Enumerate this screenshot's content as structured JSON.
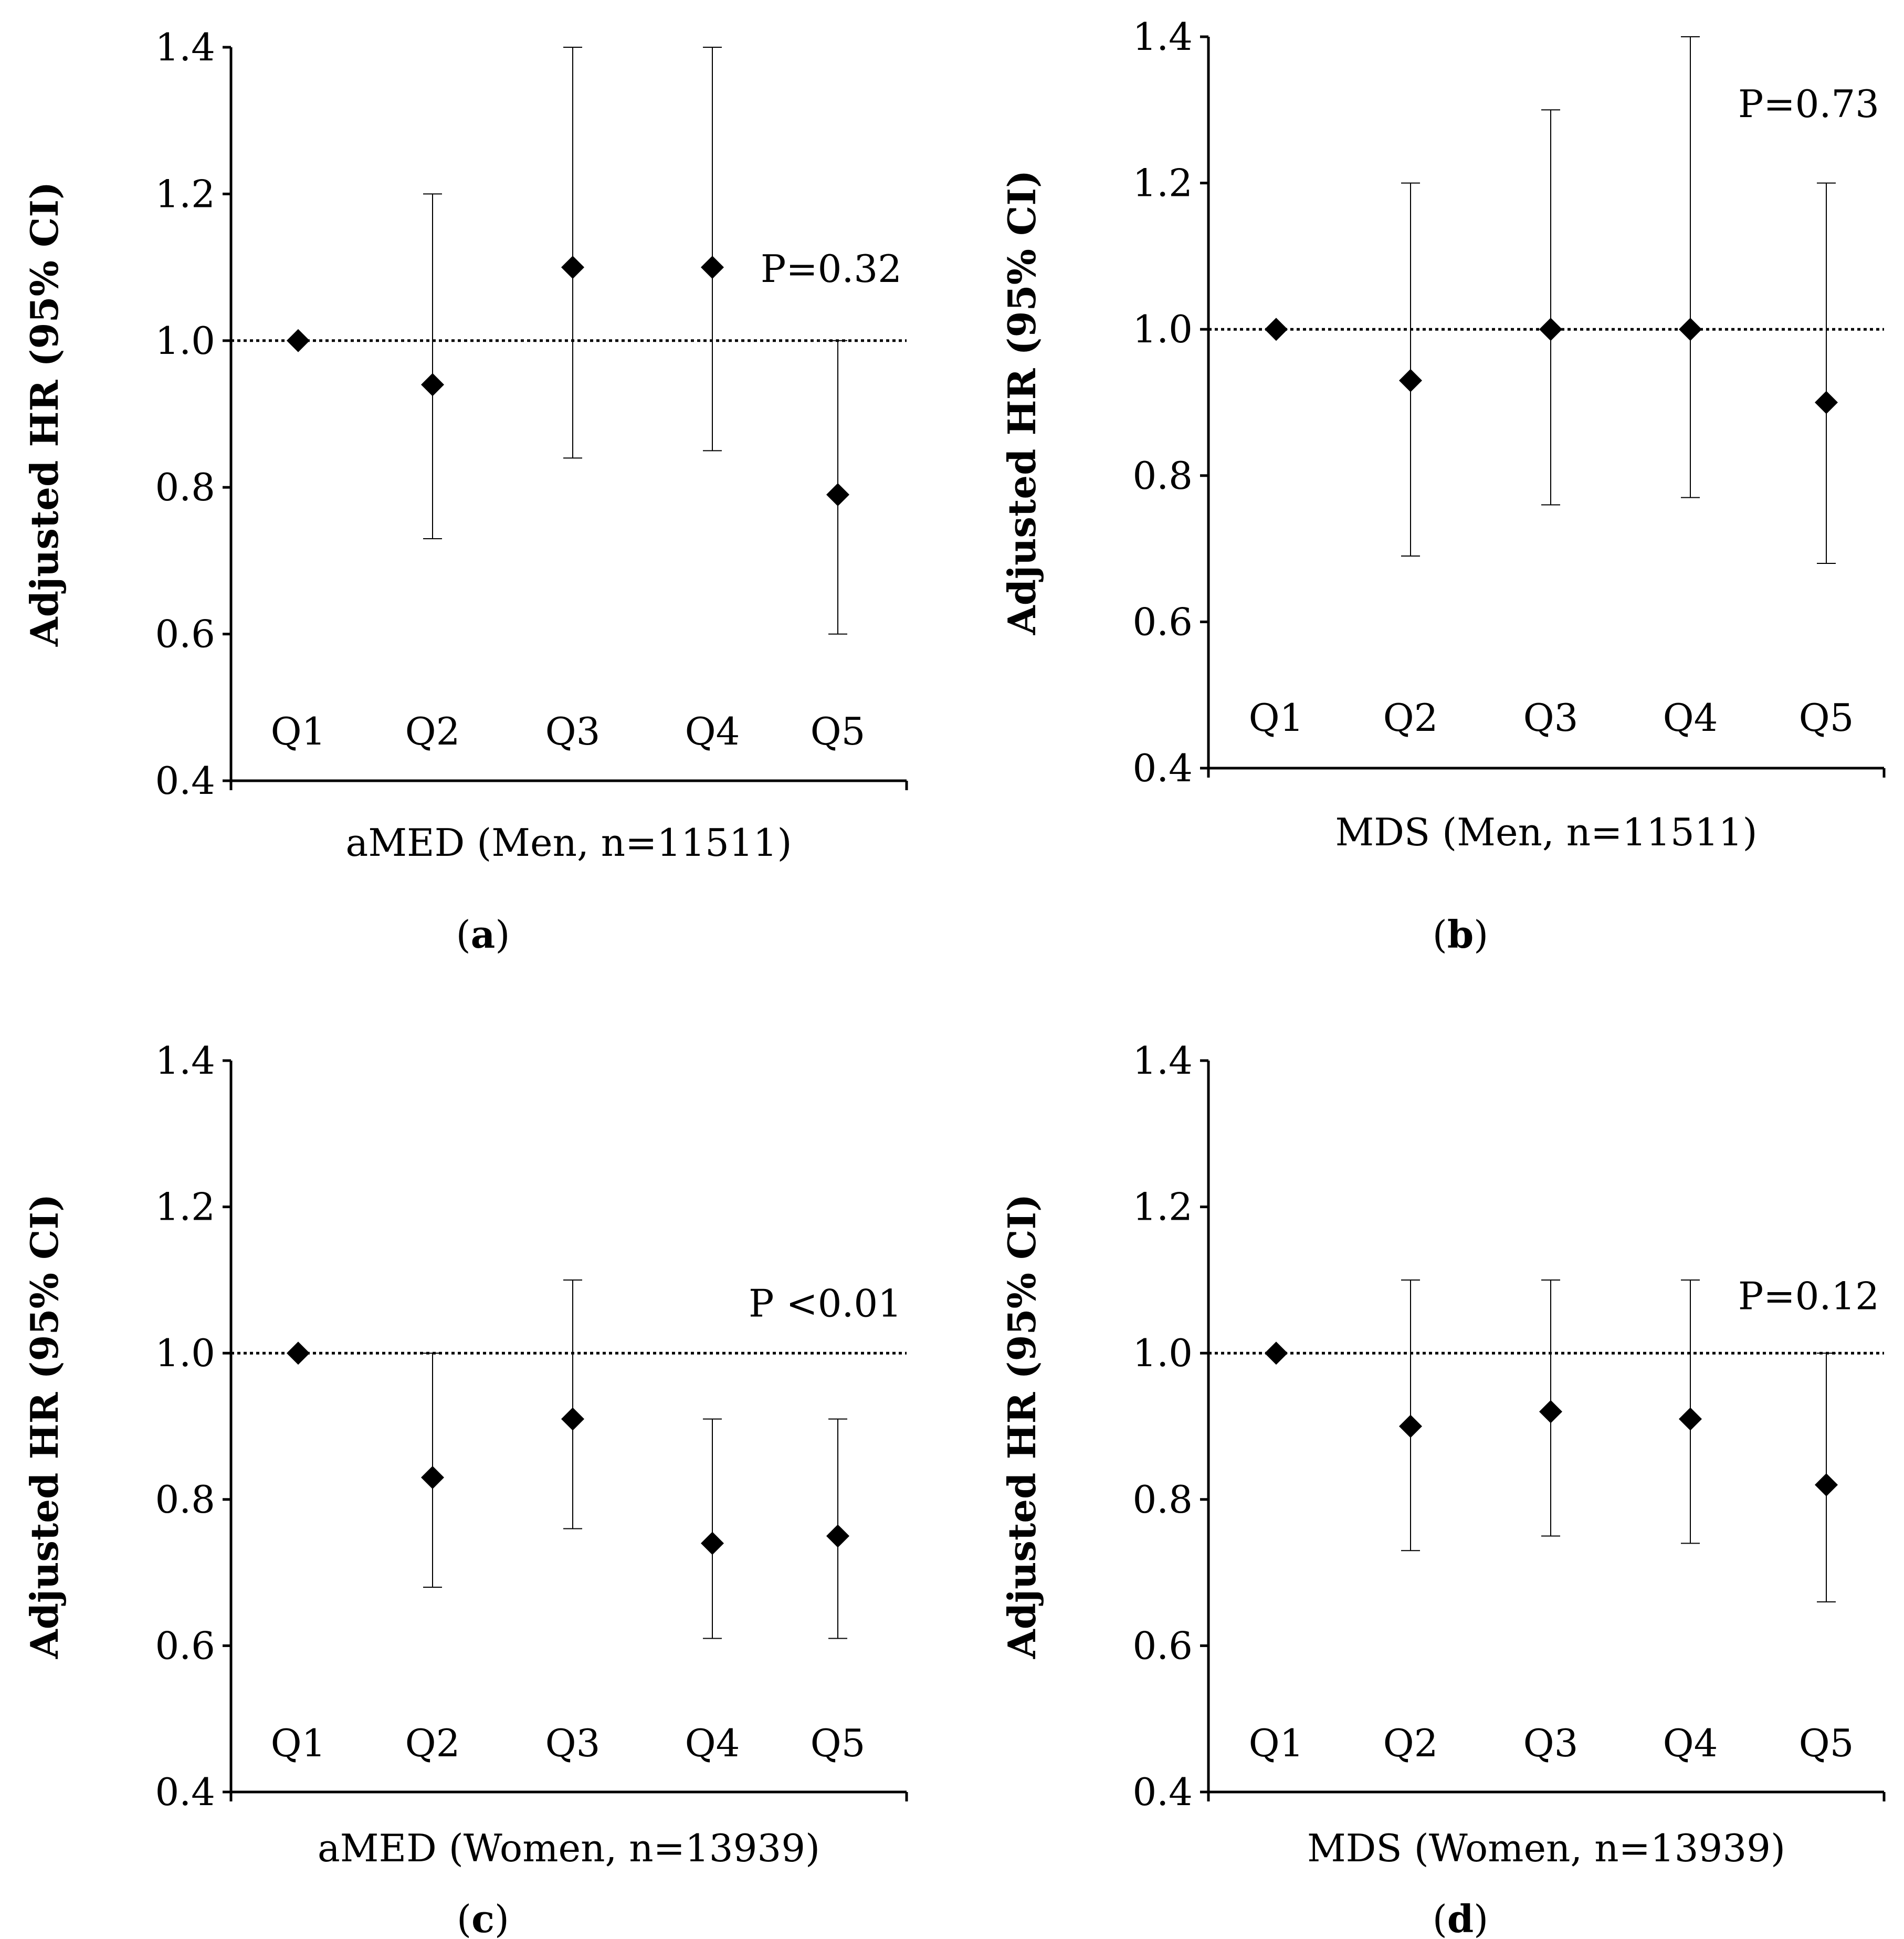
{
  "chart_data": [
    {
      "type": "scatter",
      "panel": "a",
      "title": "",
      "xlabel": "aMED (Men, n=11511)",
      "ylabel": "Adjusted HR (95% CI)",
      "ylim": [
        0.4,
        1.4
      ],
      "yticks": [
        "0.4",
        "0.6",
        "0.8",
        "1.0",
        "1.2",
        "1.4"
      ],
      "categories": [
        "Q1",
        "Q2",
        "Q3",
        "Q4",
        "Q5"
      ],
      "values": [
        1.0,
        0.94,
        1.1,
        1.1,
        0.79
      ],
      "ci_low": [
        null,
        0.73,
        0.84,
        0.85,
        0.6
      ],
      "ci_high": [
        null,
        1.2,
        1.4,
        1.4,
        1.0
      ],
      "reference_line": 1.0,
      "annotation": "P=0.32",
      "annotation_y": 1.08,
      "label": "(a)"
    },
    {
      "type": "scatter",
      "panel": "b",
      "title": "",
      "xlabel": "MDS (Men, n=11511)",
      "ylabel": "Adjusted HR (95% CI)",
      "ylim": [
        0.4,
        1.4
      ],
      "yticks": [
        "0.4",
        "0.6",
        "0.8",
        "1.0",
        "1.2",
        "1.4"
      ],
      "categories": [
        "Q1",
        "Q2",
        "Q3",
        "Q4",
        "Q5"
      ],
      "values": [
        1.0,
        0.93,
        1.0,
        1.0,
        0.9
      ],
      "ci_low": [
        null,
        0.69,
        0.76,
        0.77,
        0.68
      ],
      "ci_high": [
        null,
        1.2,
        1.3,
        1.4,
        1.2
      ],
      "reference_line": 1.0,
      "annotation": "P=0.73",
      "annotation_y": 1.29,
      "label": "(b)"
    },
    {
      "type": "scatter",
      "panel": "c",
      "title": "",
      "xlabel": "aMED (Women, n=13939)",
      "ylabel": "Adjusted HR (95% CI)",
      "ylim": [
        0.4,
        1.4
      ],
      "yticks": [
        "0.4",
        "0.6",
        "0.8",
        "1.0",
        "1.2",
        "1.4"
      ],
      "categories": [
        "Q1",
        "Q2",
        "Q3",
        "Q4",
        "Q5"
      ],
      "values": [
        1.0,
        0.83,
        0.91,
        0.74,
        0.75
      ],
      "ci_low": [
        null,
        0.68,
        0.76,
        0.61,
        0.61
      ],
      "ci_high": [
        null,
        1.0,
        1.1,
        0.91,
        0.91
      ],
      "reference_line": 1.0,
      "annotation": "P <0.01",
      "annotation_y": 1.05,
      "label": "(c)"
    },
    {
      "type": "scatter",
      "panel": "d",
      "title": "",
      "xlabel": "MDS (Women, n=13939)",
      "ylabel": "Adjusted HR (95% CI)",
      "ylim": [
        0.4,
        1.4
      ],
      "yticks": [
        "0.4",
        "0.6",
        "0.8",
        "1.0",
        "1.2",
        "1.4"
      ],
      "categories": [
        "Q1",
        "Q2",
        "Q3",
        "Q4",
        "Q5"
      ],
      "values": [
        1.0,
        0.9,
        0.92,
        0.91,
        0.82
      ],
      "ci_low": [
        null,
        0.73,
        0.75,
        0.74,
        0.66
      ],
      "ci_high": [
        null,
        1.1,
        1.1,
        1.1,
        1.0
      ],
      "reference_line": 1.0,
      "annotation": "P=0.12",
      "annotation_y": 1.06,
      "label": "(d)"
    }
  ]
}
